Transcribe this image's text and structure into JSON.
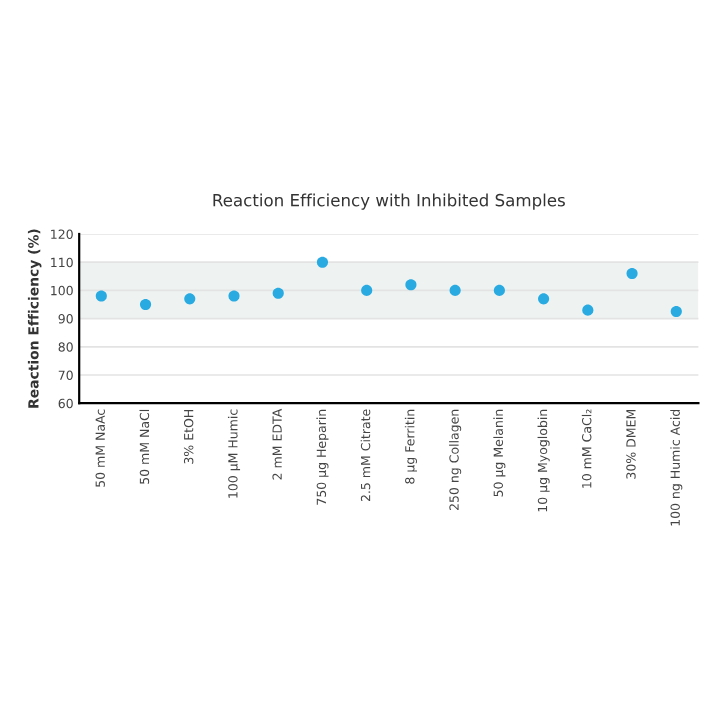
{
  "chart_data": {
    "type": "scatter",
    "title": "Reaction Efficiency with Inhibited Samples",
    "ylabel": "Reaction Efficiency (%)",
    "categories": [
      "50 mM NaAc",
      "50 mM NaCl",
      "3% EtOH",
      "100 µM Humic",
      "2 mM EDTA",
      "750 µg Heparin",
      "2.5 mM Citrate",
      "8 µg Ferritin",
      "250 ng Collagen",
      "50 µg Melanin",
      "10 µg Myoglobin",
      "10 mM CaCl₂",
      "30% DMEM",
      "100 ng Humic Acid"
    ],
    "values": [
      98,
      95,
      97,
      98,
      99,
      110,
      100,
      102,
      100,
      100,
      97,
      93,
      106,
      92.5
    ],
    "color": "#29abe2",
    "marker": "circle",
    "ylim": [
      60,
      120
    ],
    "yticks": [
      60,
      70,
      80,
      90,
      100,
      110,
      120
    ],
    "grid": "y",
    "bands": [
      {
        "axis": "y",
        "from": 90,
        "to": 110,
        "color": "#eef3f2"
      }
    ]
  }
}
